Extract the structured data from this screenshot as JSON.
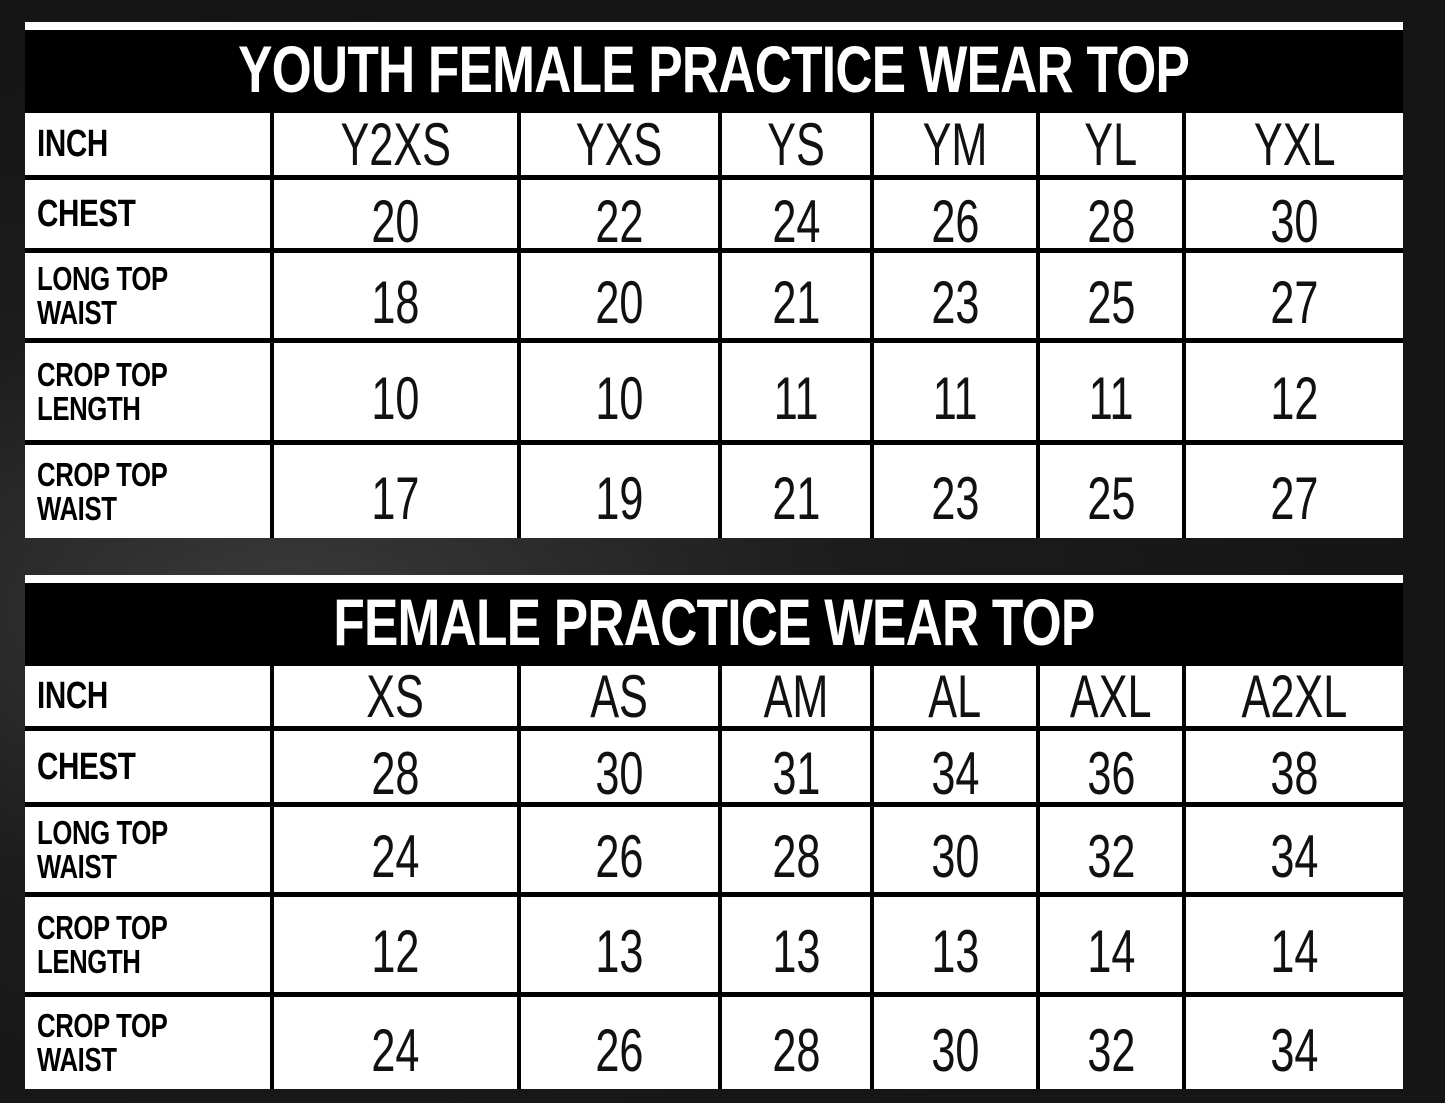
{
  "tables": [
    {
      "title": "YOUTH FEMALE PRACTICE WEAR TOP",
      "header_label": "INCH",
      "sizes": [
        "Y2XS",
        "YXS",
        "YS",
        "YM",
        "YL",
        "YXL"
      ],
      "rows": [
        {
          "label": "CHEST",
          "values": [
            "20",
            "22",
            "24",
            "26",
            "28",
            "30"
          ]
        },
        {
          "label": "LONG TOP\nWAIST",
          "values": [
            "18",
            "20",
            "21",
            "23",
            "25",
            "27"
          ]
        },
        {
          "label": "CROP TOP\nLENGTH",
          "values": [
            "10",
            "10",
            "11",
            "11",
            "11",
            "12"
          ]
        },
        {
          "label": "CROP TOP\nWAIST",
          "values": [
            "17",
            "19",
            "21",
            "23",
            "25",
            "27"
          ]
        }
      ]
    },
    {
      "title": "FEMALE PRACTICE WEAR TOP",
      "header_label": "INCH",
      "sizes": [
        "XS",
        "AS",
        "AM",
        "AL",
        "AXL",
        "A2XL"
      ],
      "rows": [
        {
          "label": "CHEST",
          "values": [
            "28",
            "30",
            "31",
            "34",
            "36",
            "38"
          ]
        },
        {
          "label": "LONG TOP\nWAIST",
          "values": [
            "24",
            "26",
            "28",
            "30",
            "32",
            "34"
          ]
        },
        {
          "label": "CROP TOP\nLENGTH",
          "values": [
            "12",
            "13",
            "13",
            "13",
            "14",
            "14"
          ]
        },
        {
          "label": "CROP TOP\nWAIST",
          "values": [
            "24",
            "26",
            "28",
            "30",
            "32",
            "34"
          ]
        }
      ]
    }
  ]
}
